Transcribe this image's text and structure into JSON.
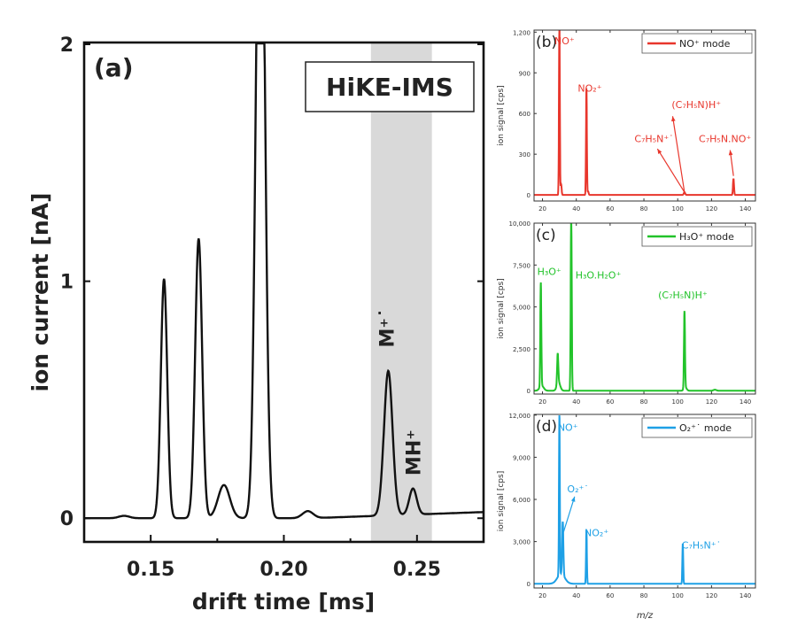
{
  "chart_data": [
    {
      "type": "line",
      "panel_label": "(a)",
      "inset_title": "HiKE-IMS",
      "xlabel": "drift time [ms]",
      "ylabel": "ion current [nA]",
      "xlim": [
        0.125,
        0.275
      ],
      "ylim": [
        -0.1,
        2.0
      ],
      "xticks": [
        0.15,
        0.2,
        0.25
      ],
      "xtick_labels": [
        "0.15",
        "0.20",
        "0.25"
      ],
      "yticks": [
        0,
        1,
        2
      ],
      "ytick_labels": [
        "0",
        "1",
        "2"
      ],
      "highlight_band": [
        0.2327,
        0.2556
      ],
      "color": "#111111",
      "peaks": [
        {
          "x": 0.14,
          "height": 0.01,
          "width": 0.002
        },
        {
          "x": 0.155,
          "height": 1.01,
          "width": 0.0012
        },
        {
          "x": 0.168,
          "height": 1.18,
          "width": 0.0013
        },
        {
          "x": 0.1775,
          "height": 0.14,
          "width": 0.0022
        },
        {
          "x": 0.1912,
          "height": 3.2,
          "width": 0.0016
        },
        {
          "x": 0.209,
          "height": 0.03,
          "width": 0.002
        },
        {
          "x": 0.2392,
          "height": 0.61,
          "width": 0.0016
        },
        {
          "x": 0.2485,
          "height": 0.11,
          "width": 0.0014
        }
      ],
      "annotations": [
        {
          "text": "M⁺˙",
          "x": 0.2385,
          "y": 0.72
        },
        {
          "text": "MH⁺",
          "x": 0.2485,
          "y": 0.18
        }
      ]
    },
    {
      "type": "line",
      "panel_label": "(b)",
      "legend": "NO⁺ mode",
      "legend_position": "top-right",
      "ylabel": "ion signal [cps]",
      "xlim": [
        15,
        146
      ],
      "ylim": [
        -45,
        1215
      ],
      "xticks": [
        20,
        40,
        60,
        80,
        100,
        120,
        140
      ],
      "yticks": [
        0,
        300,
        600,
        900,
        1200
      ],
      "ytick_labels": [
        "0",
        "300",
        "600",
        "900",
        "1,200"
      ],
      "color": "#e8362c",
      "peaks": [
        {
          "x": 30,
          "height": 1300,
          "width": 0.25
        },
        {
          "x": 31,
          "height": 80,
          "width": 0.3
        },
        {
          "x": 46,
          "height": 790,
          "width": 0.25
        },
        {
          "x": 47,
          "height": 25,
          "width": 0.3
        },
        {
          "x": 104,
          "height": 20,
          "width": 0.4
        },
        {
          "x": 133,
          "height": 120,
          "width": 0.3
        }
      ],
      "annotations": [
        {
          "text": "NO⁺",
          "x": 33,
          "y": 1110
        },
        {
          "text": "NO₂⁺",
          "x": 48,
          "y": 760
        },
        {
          "text": "(C₇H₅N)H⁺",
          "x": 111,
          "y": 640
        },
        {
          "text": "C₇H₅N⁺˙",
          "x": 86,
          "y": 390
        },
        {
          "text": "C₇H₅N.NO⁺",
          "x": 128,
          "y": 390
        }
      ],
      "arrows": [
        {
          "from": [
            104,
            20
          ],
          "to": [
            88,
            340
          ]
        },
        {
          "from": [
            104,
            20
          ],
          "to": [
            97,
            580
          ]
        },
        {
          "from": [
            133,
            140
          ],
          "to": [
            131,
            330
          ]
        }
      ]
    },
    {
      "type": "line",
      "panel_label": "(c)",
      "legend": "H₃O⁺ mode",
      "legend_position": "top-right",
      "ylabel": "ion signal [cps]",
      "xlim": [
        15,
        146
      ],
      "ylim": [
        -200,
        10000
      ],
      "xticks": [
        20,
        40,
        60,
        80,
        100,
        120,
        140
      ],
      "yticks": [
        0,
        2500,
        5000,
        7500,
        10000
      ],
      "ytick_labels": [
        "0",
        "2,500",
        "5,000",
        "7,500",
        "10,000"
      ],
      "color": "#22c32a",
      "peaks": [
        {
          "x": 19,
          "height": 6200,
          "width": 0.3
        },
        {
          "x": 19.5,
          "height": 300,
          "width": 1.2
        },
        {
          "x": 29,
          "height": 1800,
          "width": 0.35
        },
        {
          "x": 29.5,
          "height": 500,
          "width": 1.0
        },
        {
          "x": 37,
          "height": 11000,
          "width": 0.3
        },
        {
          "x": 104,
          "height": 4600,
          "width": 0.3
        },
        {
          "x": 104.5,
          "height": 200,
          "width": 0.8
        },
        {
          "x": 122,
          "height": 60,
          "width": 0.8
        }
      ],
      "annotations": [
        {
          "text": "H₃O⁺",
          "x": 24,
          "y": 6900
        },
        {
          "text": "H₃O.H₂O⁺",
          "x": 53,
          "y": 6700
        },
        {
          "text": "(C₇H₅N)H⁺",
          "x": 103,
          "y": 5500
        }
      ]
    },
    {
      "type": "line",
      "panel_label": "(d)",
      "legend": "O₂⁺˙ mode",
      "legend_position": "top-right",
      "ylabel": "ion signal [cps]",
      "xlabel": "m/z",
      "xlim": [
        15,
        146
      ],
      "ylim": [
        -300,
        12050
      ],
      "xticks": [
        20,
        40,
        60,
        80,
        100,
        120,
        140
      ],
      "yticks": [
        0,
        3000,
        6000,
        9000,
        12000
      ],
      "ytick_labels": [
        "0",
        "3,000",
        "6,000",
        "9,000",
        "12,000"
      ],
      "color": "#1ea0e6",
      "peaks": [
        {
          "x": 30,
          "height": 11500,
          "width": 0.25
        },
        {
          "x": 32,
          "height": 3800,
          "width": 0.35
        },
        {
          "x": 31,
          "height": 700,
          "width": 2.2
        },
        {
          "x": 46,
          "height": 3800,
          "width": 0.25
        },
        {
          "x": 103,
          "height": 2900,
          "width": 0.25
        }
      ],
      "annotations": [
        {
          "text": "NO⁺",
          "x": 35,
          "y": 10900
        },
        {
          "text": "O₂⁺˙",
          "x": 41,
          "y": 6500
        },
        {
          "text": "NO₂⁺",
          "x": 52,
          "y": 3400
        },
        {
          "text": "C₇H₅N⁺˙",
          "x": 114,
          "y": 2500
        }
      ],
      "arrows": [
        {
          "from": [
            32.5,
            3700
          ],
          "to": [
            39,
            6200
          ]
        }
      ]
    }
  ]
}
